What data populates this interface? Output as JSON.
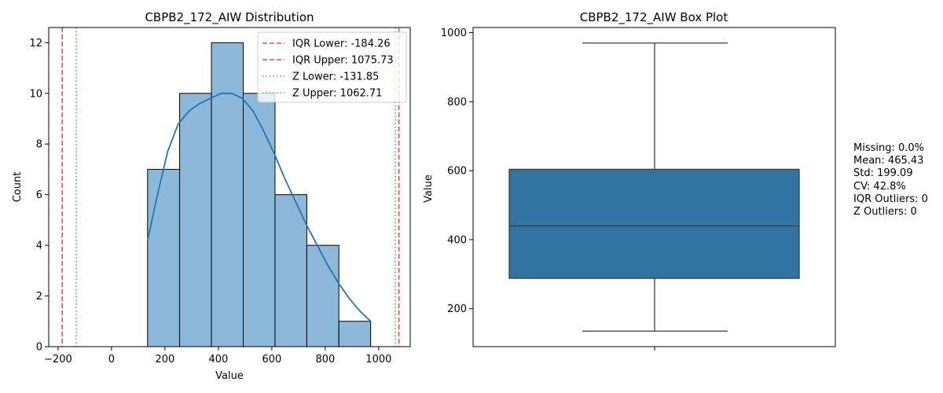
{
  "chart_data": [
    {
      "type": "bar",
      "title": "CBPB2_172_AIW Distribution",
      "xlabel": "Value",
      "ylabel": "Count",
      "xlim": [
        -235,
        1118
      ],
      "ylim": [
        0,
        12.6
      ],
      "xticks": [
        -200,
        0,
        200,
        400,
        600,
        800,
        1000
      ],
      "yticks": [
        0,
        2,
        4,
        6,
        8,
        10,
        12
      ],
      "bins": [
        {
          "x0": 135,
          "x1": 255,
          "count": 7
        },
        {
          "x0": 255,
          "x1": 374,
          "count": 10
        },
        {
          "x0": 374,
          "x1": 493,
          "count": 12
        },
        {
          "x0": 493,
          "x1": 612,
          "count": 10
        },
        {
          "x0": 612,
          "x1": 731,
          "count": 6
        },
        {
          "x0": 731,
          "x1": 851,
          "count": 4
        },
        {
          "x0": 851,
          "x1": 970,
          "count": 1
        }
      ],
      "kde": {
        "x": [
          135,
          170,
          210,
          250,
          290,
          330,
          370,
          410,
          450,
          490,
          530,
          570,
          610,
          650,
          690,
          730,
          770,
          810,
          850,
          890,
          930,
          970
        ],
        "y": [
          4.2,
          5.9,
          7.7,
          8.8,
          9.3,
          9.6,
          9.8,
          10.0,
          10.0,
          9.8,
          9.3,
          8.5,
          7.6,
          6.6,
          5.7,
          4.8,
          4.0,
          3.2,
          2.5,
          1.9,
          1.4,
          1.0
        ]
      },
      "reference_lines": [
        {
          "label": "IQR Lower: -184.26",
          "value": -184.26,
          "color": "#ff0000",
          "style": "dashed"
        },
        {
          "label": "IQR Upper: 1075.73",
          "value": 1075.73,
          "color": "#ff0000",
          "style": "dashed"
        },
        {
          "label": "Z Lower: -131.85",
          "value": -131.85,
          "color": "#2ca02c",
          "style": "dotted"
        },
        {
          "label": "Z Upper: 1062.71",
          "value": 1062.71,
          "color": "#2ca02c",
          "style": "dotted"
        }
      ],
      "bar_color": "#8cb8da",
      "kde_color": "#1f77b4",
      "legend_position": "upper-right"
    },
    {
      "type": "box",
      "title": "CBPB2_172_AIW Box Plot",
      "ylabel": "Value",
      "ylim": [
        90,
        1015
      ],
      "yticks": [
        200,
        400,
        600,
        800,
        1000
      ],
      "whisker_low": 135,
      "q1": 288,
      "median": 440,
      "q3": 604,
      "whisker_high": 970,
      "box_color": "#3274a1"
    }
  ],
  "stats": {
    "missing": "Missing: 0.0%",
    "mean": "Mean: 465.43",
    "std": "Std: 199.09",
    "cv": "CV: 42.8%",
    "iqr_outliers": "IQR Outliers: 0",
    "z_outliers": "Z Outliers: 0"
  }
}
